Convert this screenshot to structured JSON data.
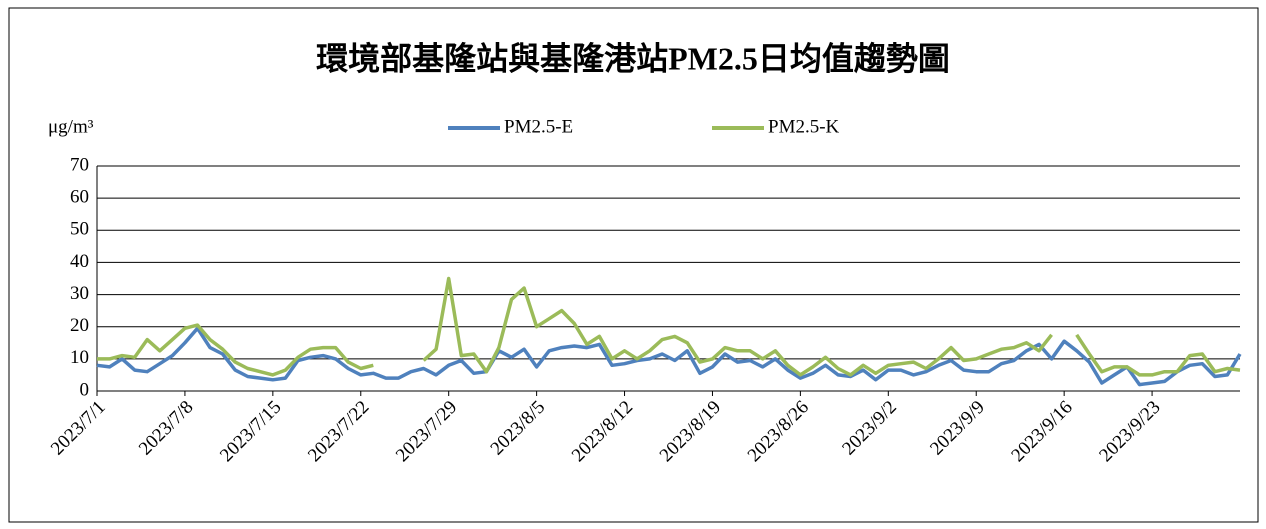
{
  "chart_data": {
    "type": "line",
    "title": "環境部基隆站與基隆港站PM2.5日均值趨勢圖",
    "y_label": "μg/m³",
    "categories": [
      "2023/7/1",
      null,
      null,
      null,
      null,
      null,
      null,
      "2023/7/8",
      null,
      null,
      null,
      null,
      null,
      null,
      "2023/7/15",
      null,
      null,
      null,
      null,
      null,
      null,
      "2023/7/22",
      null,
      null,
      null,
      null,
      null,
      null,
      "2023/7/29",
      null,
      null,
      null,
      null,
      null,
      null,
      "2023/8/5",
      null,
      null,
      null,
      null,
      null,
      null,
      "2023/8/12",
      null,
      null,
      null,
      null,
      null,
      null,
      "2023/8/19",
      null,
      null,
      null,
      null,
      null,
      null,
      "2023/8/26",
      null,
      null,
      null,
      null,
      null,
      null,
      "2023/9/2",
      null,
      null,
      null,
      null,
      null,
      null,
      "2023/9/9",
      null,
      null,
      null,
      null,
      null,
      null,
      "2023/9/16",
      null,
      null,
      null,
      null,
      null,
      null,
      "2023/9/23",
      null,
      null,
      null,
      null,
      null,
      null,
      null
    ],
    "series": [
      {
        "name": "PM2.5-E",
        "color": "#4f81bd",
        "values": [
          8,
          7.5,
          10,
          6.5,
          6,
          8.5,
          11,
          15,
          19.5,
          13.5,
          11.5,
          6.5,
          4.5,
          4,
          3.5,
          4,
          9.5,
          10.5,
          11,
          10,
          7,
          5,
          5.5,
          4,
          4,
          6,
          7,
          5,
          8,
          9.5,
          5.5,
          6,
          12.5,
          10.5,
          13,
          7.5,
          12.5,
          13.5,
          14,
          13.5,
          14.5,
          8,
          8.5,
          9.5,
          10,
          11.5,
          9.5,
          12.5,
          5.5,
          7.5,
          11.5,
          9,
          9.5,
          7.5,
          10,
          6.5,
          4,
          5.5,
          8,
          5,
          4.5,
          6.5,
          3.5,
          6.5,
          6.5,
          5,
          6,
          8,
          9.5,
          6.5,
          6,
          6,
          8.5,
          9.5,
          12.5,
          14.5,
          10,
          15.5,
          12.5,
          9,
          2.5,
          5,
          7.5,
          2,
          2.5,
          3,
          6,
          8,
          8.5,
          4.5,
          5,
          11.5
        ]
      },
      {
        "name": "PM2.5-K",
        "color": "#9bbb59",
        "values": [
          10,
          10,
          11,
          10.5,
          16,
          12.5,
          16,
          19.5,
          20.5,
          16,
          13,
          9,
          7,
          6,
          5,
          6.5,
          10.5,
          13,
          13.5,
          13.5,
          9,
          7,
          8,
          null,
          null,
          null,
          9.5,
          13,
          35,
          11,
          11.5,
          6,
          13.5,
          28.5,
          32,
          20,
          22.5,
          25,
          21,
          14.5,
          17,
          10,
          12.5,
          10,
          12.5,
          16,
          17,
          15,
          9,
          10,
          13.5,
          12.5,
          12.5,
          10,
          12.5,
          8,
          5,
          7.5,
          10.5,
          7,
          5,
          8,
          5.5,
          8,
          8.5,
          9,
          7,
          10,
          13.5,
          9.5,
          10,
          11.5,
          13,
          13.5,
          15,
          12.5,
          17.5,
          null,
          17.5,
          11.5,
          6,
          7.5,
          7.5,
          5,
          5,
          6,
          6,
          11,
          11.5,
          6,
          7,
          6.5
        ]
      }
    ],
    "ylim": [
      0,
      70
    ],
    "yticks": [
      0,
      10,
      20,
      30,
      40,
      50,
      60,
      70
    ],
    "grid": true
  }
}
